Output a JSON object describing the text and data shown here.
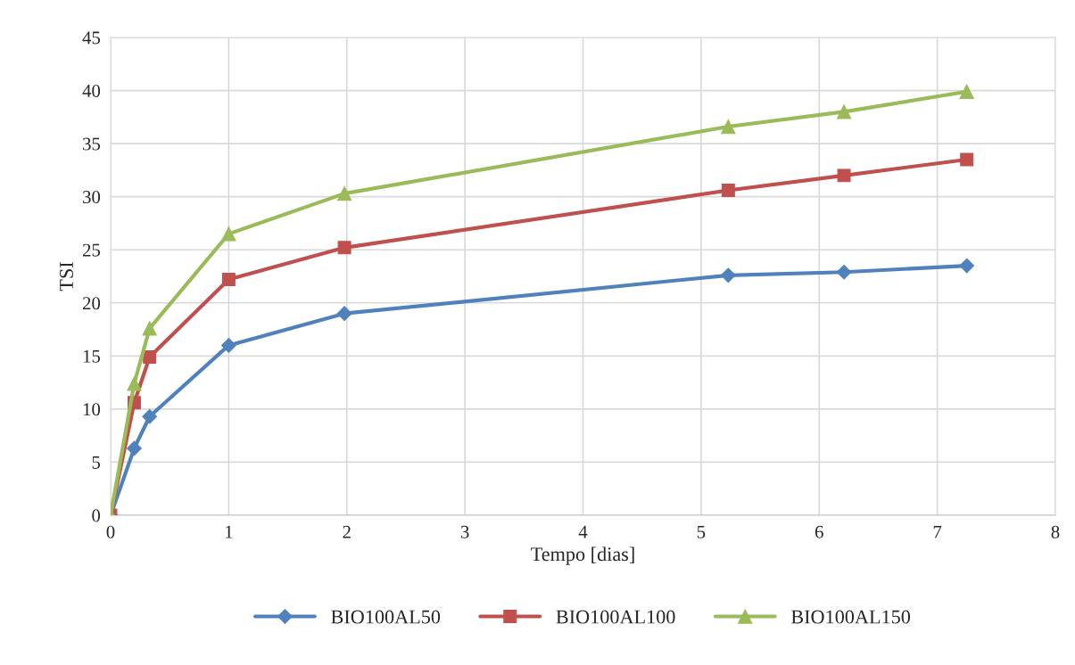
{
  "chart_data": {
    "type": "line",
    "xlabel": "Tempo [dias]",
    "ylabel": "TSI",
    "x": [
      0,
      0.2,
      0.33,
      1.0,
      1.98,
      5.23,
      6.21,
      7.25
    ],
    "series": [
      {
        "name": "BIO100AL50",
        "color": "#4f81bd",
        "marker": "diamond",
        "values": [
          0,
          6.3,
          9.3,
          16.0,
          19.0,
          22.6,
          22.9,
          23.5
        ]
      },
      {
        "name": "BIO100AL100",
        "color": "#c0504d",
        "marker": "square",
        "values": [
          0,
          10.6,
          14.9,
          22.2,
          25.2,
          30.6,
          32.0,
          33.5
        ]
      },
      {
        "name": "BIO100AL150",
        "color": "#9bbb59",
        "marker": "triangle",
        "values": [
          0,
          12.4,
          17.6,
          26.5,
          30.3,
          36.6,
          38.0,
          39.9
        ]
      }
    ],
    "xlim": [
      0,
      8
    ],
    "xticks": [
      0,
      1,
      2,
      3,
      4,
      5,
      6,
      7,
      8
    ],
    "ylim": [
      0,
      45
    ],
    "yticks": [
      0,
      5,
      10,
      15,
      20,
      25,
      30,
      35,
      40,
      45
    ],
    "grid": true,
    "legend": "bottom",
    "line_style": "solid"
  }
}
